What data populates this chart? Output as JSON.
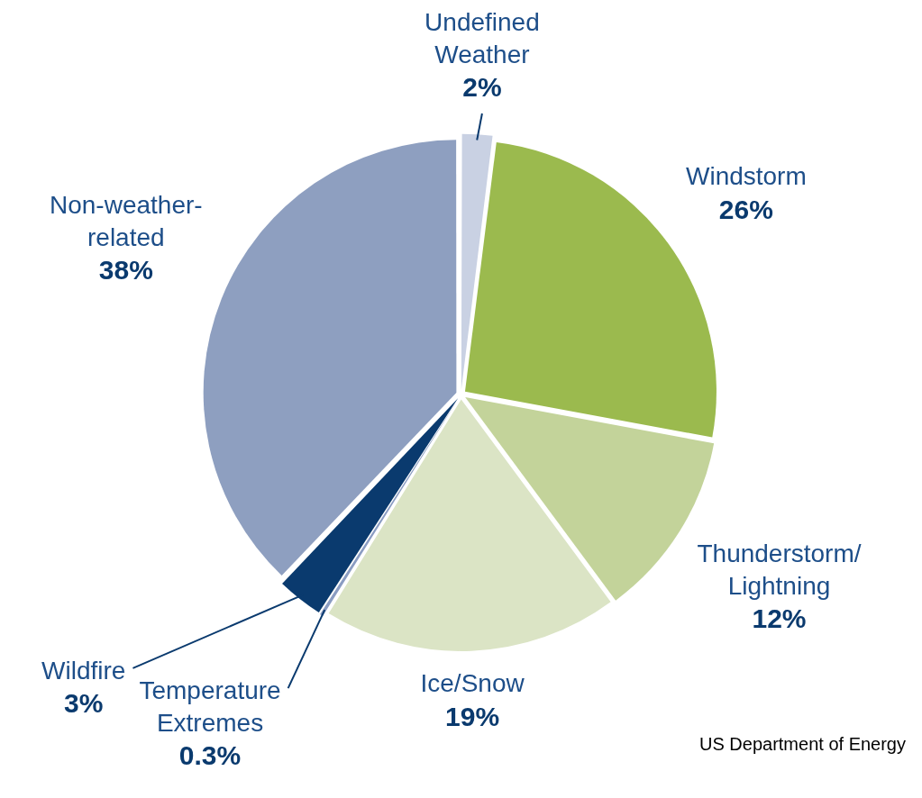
{
  "chart_data": {
    "type": "pie",
    "categories": [
      "Undefined Weather",
      "Windstorm",
      "Thunderstorm/Lightning",
      "Ice/Snow",
      "Temperature Extremes",
      "Wildfire",
      "Non-weather-related"
    ],
    "values": [
      2,
      26,
      12,
      19,
      0.3,
      3,
      38
    ],
    "colors": [
      "#c9d1e3",
      "#9bba4e",
      "#c3d39a",
      "#dbe4c5",
      "#8a9cc2",
      "#0a3a6e",
      "#8e9fc0"
    ],
    "value_labels": [
      "2%",
      "26%",
      "12%",
      "19%",
      "0.3%",
      "3%",
      "38%"
    ],
    "legend": false,
    "annotations": [
      "US Department of Energy"
    ]
  }
}
